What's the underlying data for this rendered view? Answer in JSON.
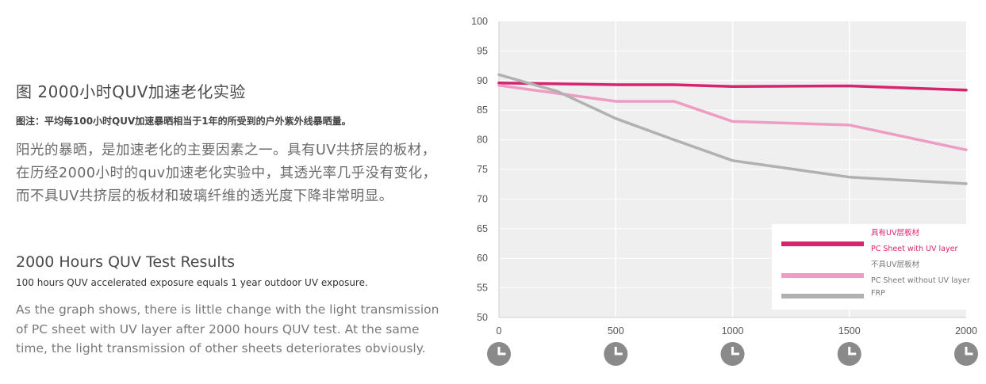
{
  "text": {
    "cn_title": "图 2000小时QUV加速老化实验",
    "cn_note": "图注：平均每100小时QUV加速暴晒相当于1年的所受到的户外紫外线暴晒量。",
    "cn_body": "阳光的暴晒，是加速老化的主要因素之一。具有UV共挤层的板材，在历经2000小时的quv加速老化实验中，其透光率几乎没有变化，而不具UV共挤层的板材和玻璃纤维的透光度下降非常明显。",
    "en_title": "2000 Hours QUV Test Results",
    "en_note": "100 hours QUV accelerated exposure equals 1 year outdoor UV exposure.",
    "en_body": "As the graph shows, there is little change with the light transmission of PC sheet with UV layer after 2000 hours QUV test. At the same time, the light transmission of other sheets deteriorates obviously."
  },
  "chart_data": {
    "type": "line",
    "xlim": [
      0,
      2000
    ],
    "ylim": [
      50,
      100
    ],
    "x_ticks": [
      "0",
      "500",
      "1000",
      "1500",
      "2000"
    ],
    "y_ticks": [
      "50",
      "55",
      "60",
      "65",
      "70",
      "75",
      "80",
      "85",
      "90",
      "95",
      "100"
    ],
    "grid": true,
    "legend_position": "bottom-right",
    "series": [
      {
        "color": "#d6246e",
        "legend_lines": [
          "具有UV层板材",
          "PC Sheet with UV layer"
        ],
        "points": [
          [
            0,
            89.6
          ],
          [
            500,
            89.3
          ],
          [
            750,
            89.3
          ],
          [
            1000,
            89.0
          ],
          [
            1500,
            89.1
          ],
          [
            2000,
            88.4
          ]
        ]
      },
      {
        "color": "#ee9cc3",
        "legend_lines": [
          "不具UV层板材",
          "PC Sheet without UV layer"
        ],
        "points": [
          [
            0,
            89.2
          ],
          [
            500,
            86.5
          ],
          [
            750,
            86.5
          ],
          [
            1000,
            83.1
          ],
          [
            1500,
            82.5
          ],
          [
            2000,
            78.3
          ]
        ]
      },
      {
        "color": "#b1b1b1",
        "legend_lines": [
          "FRP"
        ],
        "points": [
          [
            0,
            91.0
          ],
          [
            250,
            88.2
          ],
          [
            500,
            83.6
          ],
          [
            750,
            80.0
          ],
          [
            1000,
            76.5
          ],
          [
            1500,
            73.7
          ],
          [
            2000,
            72.6
          ]
        ]
      }
    ],
    "colors": {
      "plot_bg": "#efefef",
      "grid": "#ffffff",
      "axis_text": "#555555",
      "clock_icon": "#8a8a8a"
    },
    "x_marker_icon": "clock-icon"
  }
}
